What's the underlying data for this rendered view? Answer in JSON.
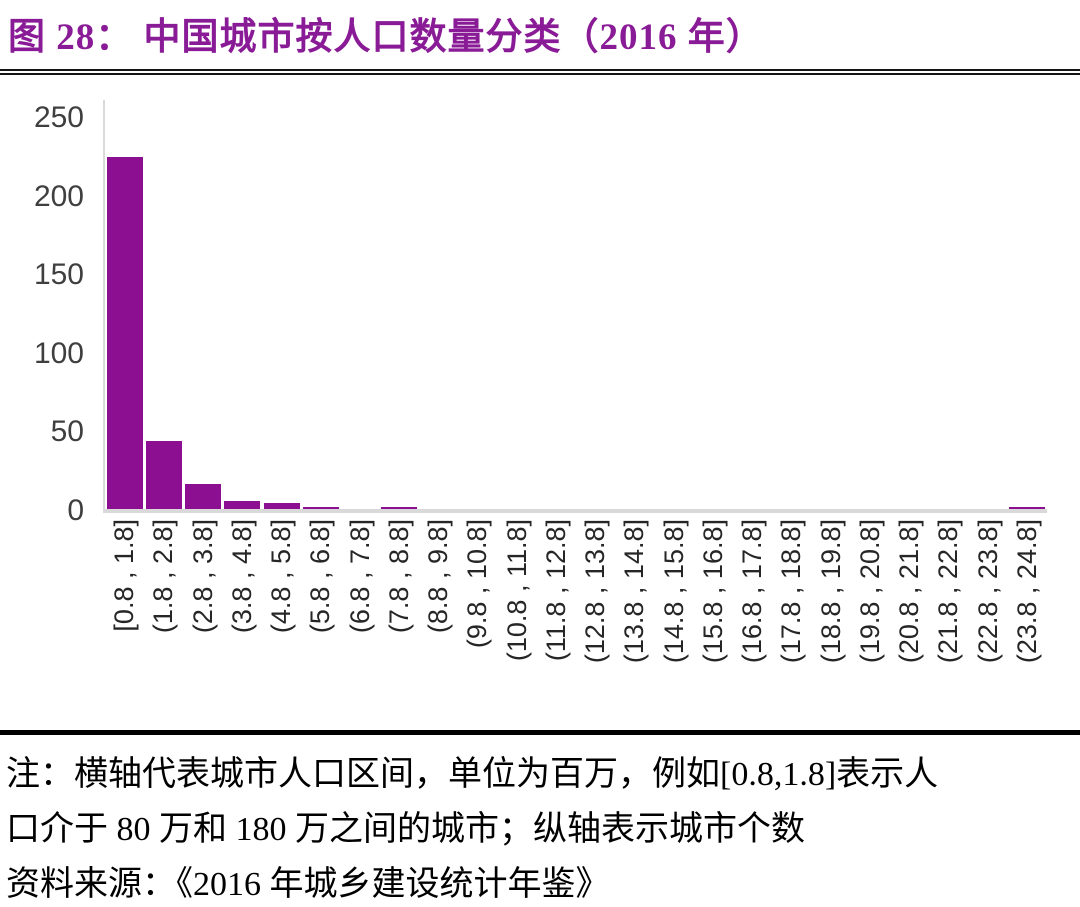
{
  "header": {
    "title": "图 28： 中国城市按人口数量分类（2016 年）"
  },
  "chart_data": {
    "type": "bar",
    "title": "中国城市按人口数量分类（2016 年）",
    "categories": [
      "[0.8 , 1.8]",
      "(1.8 , 2.8]",
      "(2.8 , 3.8]",
      "(3.8 , 4.8]",
      "(4.8 , 5.8]",
      "(5.8 , 6.8]",
      "(6.8 , 7.8]",
      "(7.8 , 8.8]",
      "(8.8 , 9.8]",
      "(9.8 , 10.8]",
      "(10.8 , 11.8]",
      "(11.8 , 12.8]",
      "(12.8 , 13.8]",
      "(13.8 , 14.8]",
      "(14.8 , 15.8]",
      "(15.8 , 16.8]",
      "(16.8 , 17.8]",
      "(17.8 , 18.8]",
      "(18.8 , 19.8]",
      "(19.8 , 20.8]",
      "(20.8 , 21.8]",
      "(21.8 , 22.8]",
      "(22.8 , 23.8]",
      "(23.8 , 24.8]"
    ],
    "values": [
      224,
      43,
      16,
      5,
      4,
      1,
      0,
      1,
      0,
      0,
      0,
      0,
      0,
      0,
      0,
      0,
      0,
      0,
      0,
      0,
      0,
      0,
      0,
      1
    ],
    "yticks": [
      0,
      50,
      100,
      150,
      200,
      250
    ],
    "ylim": [
      0,
      250
    ],
    "xlabel": "",
    "ylabel": "",
    "grid": false,
    "legend": "none",
    "x_axis_unit_note": "横轴：城市人口区间（百万）",
    "y_axis_unit_note": "纵轴：城市个数",
    "bar_color": "#8C0F91",
    "axis_color": "#D9D9D9"
  },
  "notes": {
    "line1": "注：横轴代表城市人口区间，单位为百万，例如[0.8,1.8]表示人",
    "line2": "口介于 80 万和 180 万之间的城市；纵轴表示城市个数",
    "line3": "资料来源：《2016 年城乡建设统计年鉴》"
  },
  "colors": {
    "title_purple": "#8A1B96",
    "bar_purple": "#8C0F91",
    "axis_gray": "#D9D9D9",
    "rule_black": "#000000",
    "tick_text": "#3F3F3F"
  }
}
